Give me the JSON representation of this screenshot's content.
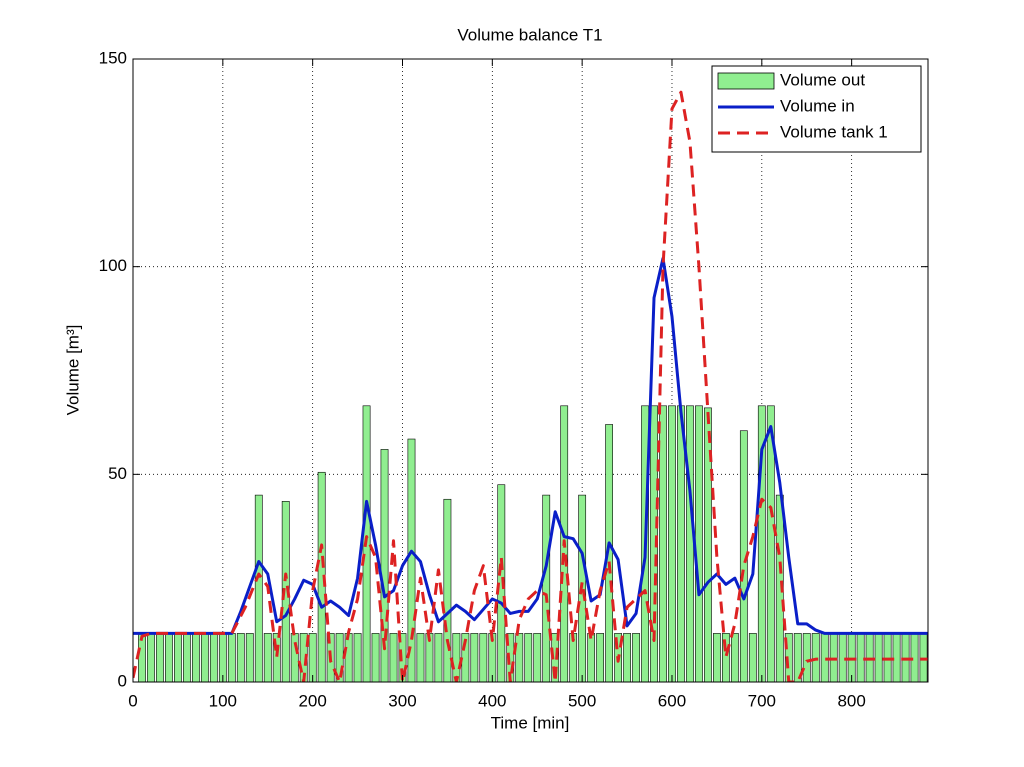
{
  "chart_data": {
    "type": "bar-line",
    "title": "Volume balance T1",
    "x_label": "Time [min]",
    "y_label": "Volume [m³]",
    "xlim": [
      0,
      885
    ],
    "ylim": [
      0,
      150
    ],
    "xticks": [
      0,
      100,
      200,
      300,
      400,
      500,
      600,
      700,
      800
    ],
    "yticks": [
      0,
      50,
      100,
      150
    ],
    "grid": true,
    "legend": "northeast",
    "series": [
      {
        "name": "Volume out",
        "kind": "bar",
        "color": "#90ee90",
        "bar_width": 8,
        "x": [
          10,
          20,
          30,
          40,
          50,
          60,
          70,
          80,
          90,
          100,
          110,
          120,
          130,
          140,
          150,
          160,
          170,
          180,
          190,
          200,
          210,
          220,
          230,
          240,
          250,
          260,
          270,
          280,
          290,
          300,
          310,
          320,
          330,
          340,
          350,
          360,
          370,
          380,
          390,
          400,
          410,
          420,
          430,
          440,
          450,
          460,
          470,
          480,
          490,
          500,
          510,
          520,
          530,
          540,
          550,
          560,
          570,
          580,
          590,
          600,
          610,
          620,
          630,
          640,
          650,
          660,
          670,
          680,
          690,
          700,
          710,
          720,
          730,
          740,
          750,
          760,
          770,
          780,
          790,
          800,
          810,
          820,
          830,
          840,
          850,
          860,
          870,
          880
        ],
        "values": [
          11.7,
          11.7,
          11.7,
          11.7,
          11.7,
          11.7,
          11.7,
          11.7,
          11.7,
          11.7,
          11.7,
          11.7,
          11.7,
          45,
          11.7,
          11.7,
          43.5,
          11.7,
          11.7,
          11.7,
          50.5,
          11.7,
          11.7,
          11.7,
          11.7,
          66.5,
          11.7,
          56,
          11.7,
          11.7,
          58.5,
          11.7,
          11.7,
          11.7,
          44,
          11.7,
          11.7,
          11.7,
          11.7,
          11.7,
          47.5,
          11.7,
          11.7,
          11.7,
          11.7,
          45,
          11.7,
          66.5,
          11.7,
          45,
          11.7,
          11.7,
          62,
          11.7,
          11.7,
          11.7,
          66.5,
          66.5,
          66.5,
          66.5,
          66.5,
          66.5,
          66.5,
          66,
          11.7,
          11.7,
          11.7,
          60.5,
          11.7,
          66.5,
          66.5,
          45,
          11.7,
          11.7,
          11.7,
          11.7,
          11.7,
          11.7,
          11.7,
          11.7,
          11.7,
          11.7,
          11.7,
          11.7,
          11.7,
          11.7,
          11.7,
          11.7
        ]
      },
      {
        "name": "Volume in",
        "kind": "line",
        "color": "#0a1fc8",
        "dash": false,
        "x": [
          0,
          100,
          110,
          120,
          130,
          140,
          150,
          160,
          170,
          180,
          190,
          200,
          210,
          220,
          230,
          240,
          250,
          260,
          270,
          280,
          290,
          300,
          310,
          320,
          330,
          340,
          350,
          360,
          370,
          380,
          390,
          400,
          410,
          420,
          430,
          440,
          450,
          460,
          470,
          480,
          490,
          500,
          510,
          520,
          530,
          540,
          550,
          560,
          570,
          580,
          590,
          600,
          610,
          620,
          630,
          640,
          650,
          660,
          670,
          680,
          690,
          700,
          710,
          720,
          730,
          740,
          750,
          760,
          770,
          885
        ],
        "values": [
          11.7,
          11.7,
          11.7,
          17,
          23,
          29,
          26,
          14.5,
          16,
          20,
          24.5,
          23.5,
          18,
          19.5,
          18,
          16,
          25,
          43.5,
          33,
          20.5,
          22,
          28,
          31.5,
          29,
          21,
          14.5,
          16.5,
          18.5,
          17,
          15,
          17.5,
          20,
          19,
          16.5,
          17,
          17,
          20,
          28,
          41,
          35,
          34.5,
          31,
          19.5,
          21,
          33.5,
          29.5,
          13.5,
          16.5,
          30,
          92.5,
          102,
          88,
          65,
          46,
          21,
          24,
          26,
          23.5,
          25,
          20,
          26,
          56,
          61.5,
          48,
          30,
          14,
          14,
          12.5,
          11.7,
          11.7
        ]
      },
      {
        "name": "Volume tank 1",
        "kind": "line",
        "color": "#dd2222",
        "dash": true,
        "x": [
          0,
          10,
          20,
          110,
          125,
          140,
          150,
          160,
          170,
          180,
          190,
          200,
          210,
          220,
          230,
          240,
          250,
          260,
          270,
          280,
          290,
          300,
          310,
          320,
          330,
          340,
          350,
          360,
          370,
          380,
          390,
          400,
          410,
          420,
          430,
          440,
          450,
          460,
          470,
          480,
          490,
          500,
          510,
          520,
          530,
          540,
          550,
          560,
          570,
          580,
          590,
          600,
          610,
          620,
          630,
          640,
          650,
          660,
          670,
          680,
          690,
          700,
          710,
          720,
          730,
          740,
          750,
          760,
          885
        ],
        "values": [
          1,
          11,
          11.7,
          11.7,
          18,
          26,
          23,
          6,
          26,
          10,
          0,
          22,
          33,
          5,
          0,
          12,
          20,
          35,
          30,
          8,
          34,
          0,
          10,
          25,
          10,
          27,
          10,
          0,
          10,
          22,
          28,
          10,
          30,
          0,
          15,
          20,
          22,
          21,
          0,
          34,
          10,
          24,
          10,
          22,
          29,
          5,
          18,
          20,
          22,
          10,
          100,
          138,
          142,
          130,
          100,
          65,
          30,
          6,
          14,
          28,
          35,
          44,
          42,
          30,
          0,
          0,
          5,
          5.5,
          5.5
        ]
      }
    ]
  }
}
